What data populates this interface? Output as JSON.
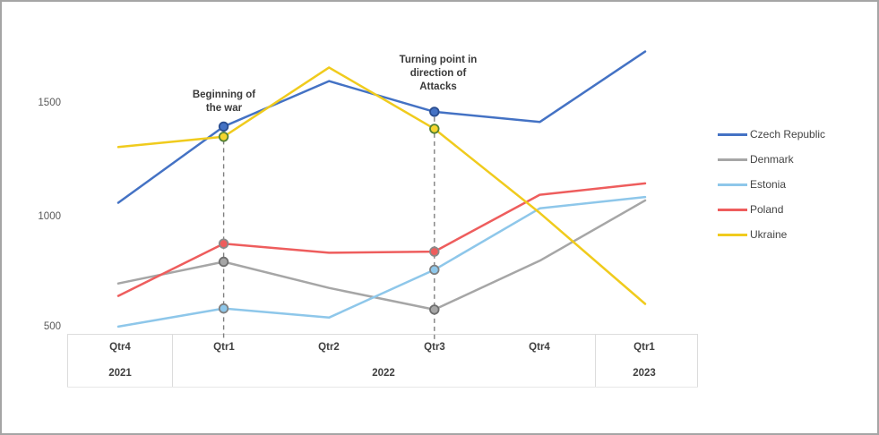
{
  "figure": {
    "background": "#ffffff",
    "border_color": "#a5a5a5"
  },
  "chart_data": {
    "type": "line",
    "title": "",
    "x_axis": {
      "quarters": [
        "Qtr4",
        "Qtr1",
        "Qtr2",
        "Qtr3",
        "Qtr4",
        "Qtr1"
      ],
      "year_groups": [
        {
          "label": "2021",
          "quarter_indices": [
            0
          ]
        },
        {
          "label": "2022",
          "quarter_indices": [
            1,
            2,
            3,
            4
          ]
        },
        {
          "label": "2023",
          "quarter_indices": [
            5
          ]
        }
      ]
    },
    "y_axis": {
      "ticks": [
        "500",
        "1000",
        "1500"
      ],
      "range": [
        500,
        1800
      ],
      "grid": false
    },
    "legend_position": "right",
    "series": [
      {
        "name": "Czech Republic",
        "color": "#4472c4",
        "marker_fill": "#4472c4",
        "marker_stroke": "#2a4d8f",
        "values": [
          1065,
          1400,
          1600,
          1465,
          1420,
          1730
        ]
      },
      {
        "name": "Denmark",
        "color": "#a6a6a6",
        "marker_fill": "#a6a6a6",
        "marker_stroke": "#6e6e6e",
        "values": [
          710,
          805,
          690,
          595,
          810,
          1075
        ]
      },
      {
        "name": "Estonia",
        "color": "#8ec7ea",
        "marker_fill": "#8ec7ea",
        "marker_stroke": "#7f7f7f",
        "values": [
          520,
          600,
          560,
          770,
          1040,
          1090
        ]
      },
      {
        "name": "Poland",
        "color": "#ee5d5d",
        "marker_fill": "#ee5d5d",
        "marker_stroke": "#8a8a8a",
        "values": [
          655,
          885,
          845,
          850,
          1100,
          1150
        ]
      },
      {
        "name": "Ukraine",
        "color": "#f0cb1d",
        "marker_fill": "#f5d52e",
        "marker_stroke": "#538135",
        "values": [
          1310,
          1355,
          1660,
          1390,
          1020,
          620
        ]
      }
    ],
    "highlight_x_indices": [
      1,
      3
    ],
    "highlight_line_color": "#808080",
    "annotations": [
      {
        "x_index": 1,
        "lines": [
          "Beginning of",
          "the war"
        ]
      },
      {
        "x_index": 3,
        "lines": [
          "Turning point in",
          "direction of",
          "Attacks"
        ]
      }
    ]
  }
}
